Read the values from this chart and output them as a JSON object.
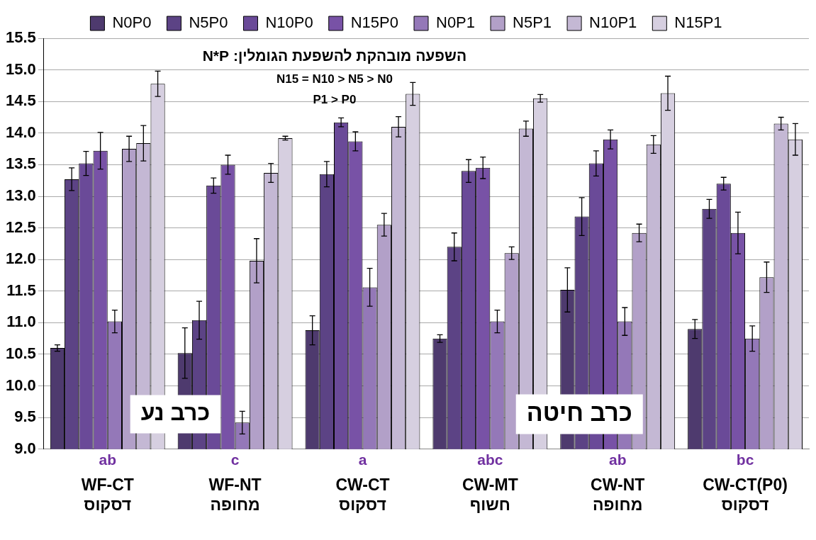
{
  "chart_data": {
    "type": "bar",
    "categories": [
      "WF-CT\nדסקוס",
      "WF-NT\nמחופה",
      "CW-CT\nדסקוס",
      "CW-MT\nחשוף",
      "CW-NT\nמחופה",
      "CW-CT(P0)\nדסקוס"
    ],
    "series": [
      {
        "name": "N0P0",
        "color": "#4e3a6e",
        "values": [
          10.6,
          10.52,
          10.88,
          10.75,
          11.52,
          10.9
        ],
        "errors": [
          0.05,
          0.4,
          0.23,
          0.06,
          0.35,
          0.15
        ]
      },
      {
        "name": "N5P0",
        "color": "#5c4385",
        "values": [
          13.27,
          11.04,
          13.35,
          12.2,
          12.68,
          12.8
        ],
        "errors": [
          0.18,
          0.3,
          0.2,
          0.22,
          0.3,
          0.15
        ]
      },
      {
        "name": "N10P0",
        "color": "#6a4a98",
        "values": [
          13.52,
          13.17,
          14.17,
          13.4,
          13.52,
          13.2
        ],
        "errors": [
          0.19,
          0.12,
          0.07,
          0.18,
          0.2,
          0.1
        ]
      },
      {
        "name": "N15P0",
        "color": "#7852a6",
        "values": [
          13.72,
          13.5,
          13.87,
          13.45,
          13.9,
          12.42
        ],
        "errors": [
          0.29,
          0.15,
          0.15,
          0.17,
          0.15,
          0.33
        ]
      },
      {
        "name": "N0P1",
        "color": "#9478b8",
        "values": [
          11.02,
          9.42,
          11.56,
          11.02,
          11.02,
          10.75
        ],
        "errors": [
          0.18,
          0.18,
          0.3,
          0.18,
          0.22,
          0.2
        ]
      },
      {
        "name": "N5P1",
        "color": "#b2a0c8",
        "values": [
          13.75,
          11.98,
          12.55,
          12.1,
          12.42,
          11.72
        ],
        "errors": [
          0.2,
          0.35,
          0.18,
          0.1,
          0.14,
          0.24
        ]
      },
      {
        "name": "N10P1",
        "color": "#c4b8d4",
        "values": [
          13.84,
          13.37,
          14.1,
          14.07,
          13.82,
          14.15
        ],
        "errors": [
          0.28,
          0.15,
          0.16,
          0.12,
          0.14,
          0.1
        ]
      },
      {
        "name": "N15P1",
        "color": "#d6cfe0",
        "values": [
          14.78,
          13.92,
          14.62,
          14.55,
          14.63,
          13.9
        ],
        "errors": [
          0.2,
          0.03,
          0.18,
          0.06,
          0.27,
          0.25
        ]
      }
    ],
    "ylim": [
      9,
      15.5
    ],
    "yticks": [
      {
        "value": 9,
        "label": "9.0"
      },
      {
        "value": 9.5,
        "label": "9.5"
      },
      {
        "value": 10,
        "label": "10.0"
      },
      {
        "value": 10.5,
        "label": "10.5"
      },
      {
        "value": 11,
        "label": "11.0"
      },
      {
        "value": 11.5,
        "label": "11.5"
      },
      {
        "value": 12,
        "label": "12.0"
      },
      {
        "value": 12.5,
        "label": "12.5"
      },
      {
        "value": 13,
        "label": "13.0"
      },
      {
        "value": 13.5,
        "label": "13.5"
      },
      {
        "value": 14,
        "label": "14.0"
      },
      {
        "value": 14.5,
        "label": "14.5"
      },
      {
        "value": 15,
        "label": "15.0"
      },
      {
        "value": 15.5,
        "label": "15.5"
      }
    ],
    "grid": "y",
    "legend": "top",
    "annotations": [
      "השפעה מובהקת להשפעת הגומלין: N*P",
      "N15 = N10 > N5 > N0",
      "P1 > P0",
      "כרב נע",
      "כרב חיטה",
      {
        "text": "ab",
        "x": "WF-CT\nדסקוס"
      },
      {
        "text": "c",
        "x": "WF-NT\nמחופה"
      },
      {
        "text": "a",
        "x": "CW-CT\nדסקוס"
      },
      {
        "text": "abc",
        "x": "CW-MT\nחשוף"
      },
      {
        "text": "ab",
        "x": "CW-NT\nמחופה"
      },
      {
        "text": "bc",
        "x": "CW-CT(P0)\nדסקוס"
      }
    ]
  }
}
